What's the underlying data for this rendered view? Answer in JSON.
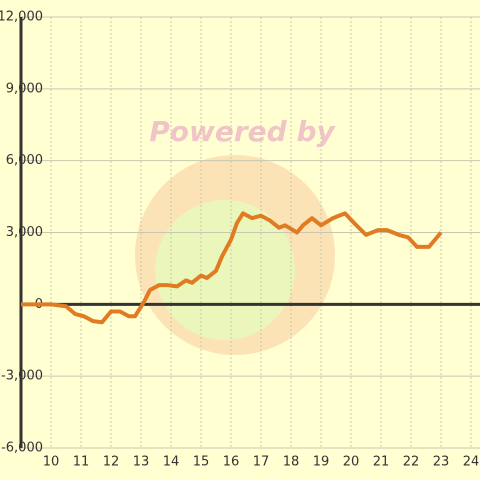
{
  "chart_data": {
    "type": "line",
    "watermark": "Powered by",
    "x": [
      9.0,
      10.0,
      10.5,
      10.8,
      11.1,
      11.4,
      11.7,
      12.0,
      12.3,
      12.6,
      12.8,
      13.1,
      13.3,
      13.6,
      13.9,
      14.2,
      14.5,
      14.7,
      15.0,
      15.2,
      15.5,
      15.7,
      16.0,
      16.2,
      16.4,
      16.7,
      17.0,
      17.3,
      17.6,
      17.8,
      18.2,
      18.4,
      18.7,
      19.0,
      19.4,
      19.8,
      20.1,
      20.5,
      20.9,
      21.2,
      21.6,
      21.9,
      22.2,
      22.6,
      23.0
    ],
    "series": [
      {
        "color": "#e07b24",
        "values": [
          0,
          0,
          -80,
          -400,
          -500,
          -700,
          -750,
          -300,
          -300,
          -500,
          -500,
          100,
          600,
          800,
          800,
          750,
          1000,
          900,
          1200,
          1100,
          1400,
          2000,
          2700,
          3400,
          3800,
          3600,
          3700,
          3500,
          3200,
          3300,
          3000,
          3300,
          3600,
          3300,
          3600,
          3800,
          3400,
          2900,
          3100,
          3100,
          2900,
          2800,
          2400,
          2400,
          3000
        ]
      }
    ],
    "xlim": [
      9,
      24.3
    ],
    "xticks": [
      10,
      11,
      12,
      13,
      14,
      15,
      16,
      17,
      18,
      19,
      20,
      21,
      22,
      23,
      24
    ],
    "ylim": [
      -6000,
      12000
    ],
    "yticks": [
      {
        "value": -6000,
        "label": "-6,000"
      },
      {
        "value": -3000,
        "label": "-3,000"
      },
      0,
      {
        "value": 3000,
        "label": "3,000"
      },
      {
        "value": 6000,
        "label": "6,000"
      },
      {
        "value": 9000,
        "label": "9,000"
      },
      {
        "value": 12000,
        "label": "12,000"
      }
    ],
    "grid": true
  }
}
